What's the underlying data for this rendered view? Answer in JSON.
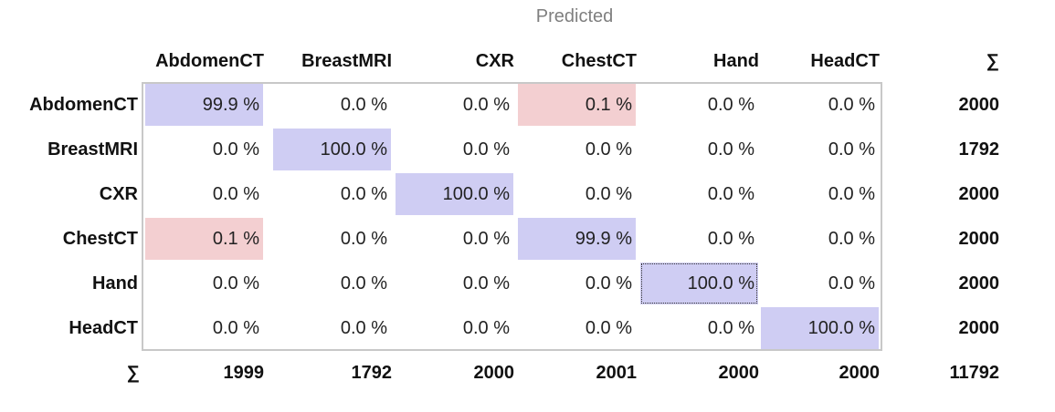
{
  "chart_data": {
    "type": "table",
    "title": "Predicted",
    "column_labels": [
      "AbdomenCT",
      "BreastMRI",
      "CXR",
      "ChestCT",
      "Hand",
      "HeadCT"
    ],
    "row_labels": [
      "AbdomenCT",
      "BreastMRI",
      "CXR",
      "ChestCT",
      "Hand",
      "HeadCT"
    ],
    "sum_symbol": "∑",
    "cells": [
      [
        "99.9 %",
        "0.0 %",
        "0.0 %",
        "0.1 %",
        "0.0 %",
        "0.0 %"
      ],
      [
        "0.0 %",
        "100.0 %",
        "0.0 %",
        "0.0 %",
        "0.0 %",
        "0.0 %"
      ],
      [
        "0.0 %",
        "0.0 %",
        "100.0 %",
        "0.0 %",
        "0.0 %",
        "0.0 %"
      ],
      [
        "0.1 %",
        "0.0 %",
        "0.0 %",
        "99.9 %",
        "0.0 %",
        "0.0 %"
      ],
      [
        "0.0 %",
        "0.0 %",
        "0.0 %",
        "0.0 %",
        "100.0 %",
        "0.0 %"
      ],
      [
        "0.0 %",
        "0.0 %",
        "0.0 %",
        "0.0 %",
        "0.0 %",
        "100.0 %"
      ]
    ],
    "row_sums": [
      "2000",
      "1792",
      "2000",
      "2000",
      "2000",
      "2000"
    ],
    "column_sums": [
      "1999",
      "1792",
      "2000",
      "2001",
      "2000",
      "2000"
    ],
    "total": "11792",
    "highlight": {
      "diagonal_color": "#cfcdf3",
      "error_color": "#f3cfd1",
      "error_cells": [
        [
          0,
          3
        ],
        [
          3,
          0
        ]
      ],
      "focused_cell": [
        4,
        4
      ]
    }
  }
}
